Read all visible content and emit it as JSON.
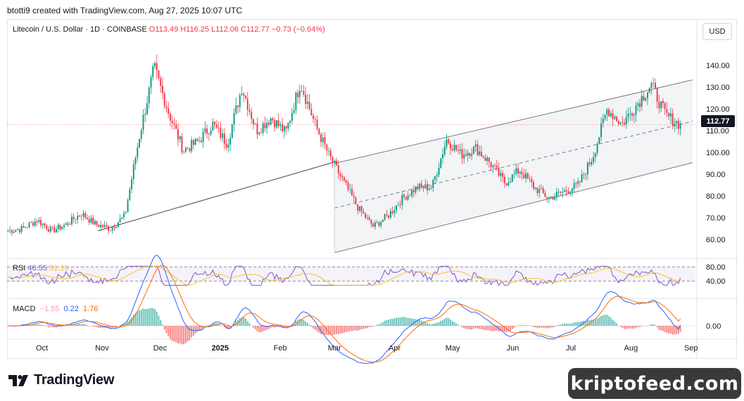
{
  "caption": "btotti9 created with TradingView.com, Aug 27, 2025 10:07 UTC",
  "symbol": "Litecoin / U.S. Dollar · 1D · COINBASE",
  "ohlc_text": "O113.49 H116.25 L112.06 C112.77 −0.73 (−0.64%)",
  "currency_button": "USD",
  "last_price": "112.77",
  "brand": "TradingView",
  "watermark": "kriptofeed.com",
  "colors": {
    "up": "#089981",
    "down": "#f23645",
    "rsi": "#7e57c2",
    "rsi_ma": "#fbc02d",
    "macd": "#2962ff",
    "signal": "#ff6d00",
    "channel": "#787b86"
  },
  "rsi": {
    "label": "RSI",
    "value": "46.55",
    "ma_value": "51.19",
    "levels": [
      40,
      80
    ]
  },
  "macd": {
    "label": "MACD",
    "hist": "−1.55",
    "macd": "0.22",
    "signal": "1.76"
  },
  "chart_data": [
    {
      "type": "candlestick",
      "title": "Litecoin / U.S. Dollar · 1D · COINBASE",
      "x_ticks": [
        "Oct",
        "Nov",
        "Dec",
        "2025",
        "Feb",
        "Mar",
        "Apr",
        "May",
        "Jun",
        "Jul",
        "Aug",
        "Sep"
      ],
      "y_ticks": [
        60,
        70,
        80,
        90,
        100,
        110,
        120,
        130,
        140
      ],
      "ylim": [
        52,
        150
      ],
      "x_dates": [
        "2024-09-13",
        "2024-10-01",
        "2024-11-01",
        "2024-12-01",
        "2025-01-01",
        "2025-02-01",
        "2025-03-01",
        "2025-04-01",
        "2025-05-01",
        "2025-06-01",
        "2025-07-01",
        "2025-08-01",
        "2025-08-27"
      ],
      "close_path": [
        64,
        65,
        69,
        64,
        67,
        72,
        67,
        65,
        71,
        108,
        139,
        118,
        101,
        105,
        113,
        104,
        130,
        110,
        116,
        109,
        132,
        113,
        98,
        86,
        74,
        66,
        71,
        79,
        84,
        84,
        106,
        99,
        102,
        95,
        86,
        92,
        84,
        79,
        82,
        85,
        98,
        120,
        113,
        122,
        131,
        117,
        112.77
      ],
      "trendline_lower": [
        [
          "2024-11-01",
          64
        ],
        [
          "2025-03-01",
          96
        ]
      ],
      "channel_upper": [
        [
          "2025-03-01",
          95
        ],
        [
          "2025-08-27",
          133
        ]
      ],
      "channel_mid": [
        [
          "2025-03-01",
          74.5
        ],
        [
          "2025-08-27",
          114
        ]
      ],
      "channel_lower": [
        [
          "2025-03-01",
          54
        ],
        [
          "2025-08-27",
          95
        ]
      ],
      "last_price": 112.77
    },
    {
      "type": "line",
      "title": "RSI",
      "series": [
        {
          "name": "RSI",
          "last": 46.55
        },
        {
          "name": "RSI MA",
          "last": 51.19
        }
      ],
      "y_ticks": [
        40,
        80
      ]
    },
    {
      "type": "bar",
      "title": "MACD",
      "series": [
        {
          "name": "Histogram",
          "last": -1.55
        },
        {
          "name": "MACD",
          "last": 0.22
        },
        {
          "name": "Signal",
          "last": 1.76
        }
      ],
      "y_ticks": [
        0
      ]
    }
  ]
}
